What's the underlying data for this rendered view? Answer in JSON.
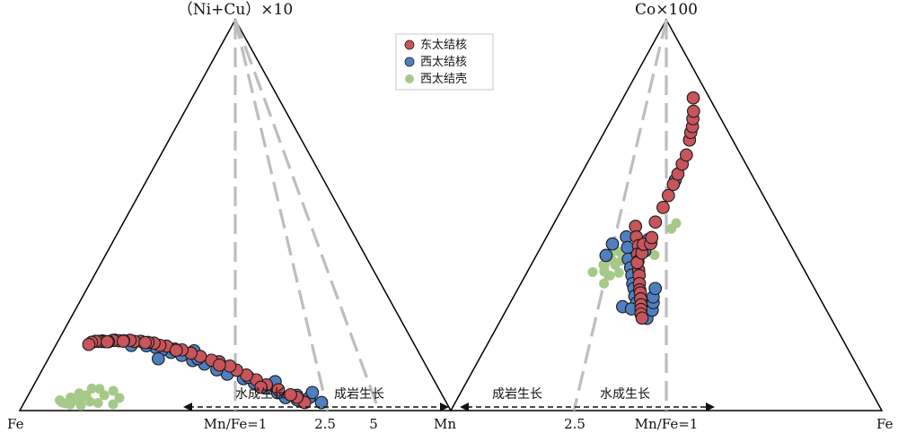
{
  "chart_data": [
    {
      "type": "scatter",
      "plot": "ternary",
      "apex_top": "（Ni+Cu）×10",
      "corner_left": "Fe",
      "corner_right": "Mn",
      "ratio_lines": [
        {
          "label": "Mn/Fe=1",
          "ratio": 1
        },
        {
          "label": "2.5",
          "ratio": 2.5
        },
        {
          "label": "5",
          "ratio": 5
        }
      ],
      "process_arrow": {
        "left_label": "水成生长",
        "right_label": "成岩生长"
      },
      "series": [
        {
          "name": "东太结核",
          "color": "#c8545c",
          "points": [
            [
              0.48,
              0.95,
              0.03
            ],
            [
              0.5,
              0.92,
              0.05
            ],
            [
              0.52,
              0.9,
              0.06
            ],
            [
              0.56,
              0.86,
              0.08
            ],
            [
              0.6,
              0.82,
              0.1
            ],
            [
              0.63,
              0.78,
              0.12
            ],
            [
              0.66,
              0.74,
              0.14
            ],
            [
              0.69,
              0.7,
              0.16
            ],
            [
              0.72,
              0.68,
              0.18
            ],
            [
              0.76,
              0.64,
              0.2
            ],
            [
              0.8,
              0.62,
              0.21
            ],
            [
              0.85,
              0.58,
              0.23
            ],
            [
              0.9,
              0.55,
              0.25
            ],
            [
              0.95,
              0.52,
              0.27
            ],
            [
              1.0,
              0.5,
              0.28
            ],
            [
              1.05,
              0.47,
              0.3
            ],
            [
              1.1,
              0.45,
              0.31
            ],
            [
              1.15,
              0.43,
              0.33
            ],
            [
              1.2,
              0.41,
              0.34
            ],
            [
              1.28,
              0.39,
              0.36
            ],
            [
              1.35,
              0.37,
              0.37
            ],
            [
              1.42,
              0.36,
              0.39
            ],
            [
              1.5,
              0.34,
              0.4
            ],
            [
              1.6,
              0.33,
              0.42
            ],
            [
              1.7,
              0.31,
              0.44
            ],
            [
              1.8,
              0.3,
              0.45
            ],
            [
              1.9,
              0.29,
              0.47
            ],
            [
              2.0,
              0.28,
              0.49
            ],
            [
              2.1,
              0.27,
              0.51
            ],
            [
              2.2,
              0.26,
              0.53
            ],
            [
              2.35,
              0.25,
              0.55
            ],
            [
              2.5,
              0.25,
              0.56
            ],
            [
              0.62,
              0.8,
              0.09
            ],
            [
              0.78,
              0.66,
              0.19
            ],
            [
              0.98,
              0.5,
              0.27
            ],
            [
              1.25,
              0.41,
              0.35
            ],
            [
              1.55,
              0.35,
              0.41
            ],
            [
              1.85,
              0.3,
              0.46
            ]
          ]
        },
        {
          "name": "西太结核",
          "color": "#4f7fc0",
          "points": [
            [
              0.5,
              0.92,
              0.04
            ],
            [
              0.46,
              0.97,
              0.05
            ],
            [
              0.52,
              0.96,
              0.06
            ],
            [
              0.55,
              0.9,
              0.05
            ],
            [
              0.58,
              0.88,
              0.07
            ],
            [
              0.62,
              0.84,
              0.09
            ],
            [
              0.66,
              0.8,
              0.11
            ],
            [
              0.7,
              0.76,
              0.13
            ],
            [
              0.76,
              0.7,
              0.15
            ],
            [
              0.8,
              0.66,
              0.17
            ],
            [
              0.86,
              0.62,
              0.2
            ],
            [
              0.92,
              0.58,
              0.22
            ],
            [
              0.98,
              0.54,
              0.25
            ],
            [
              1.04,
              0.5,
              0.27
            ],
            [
              1.1,
              0.47,
              0.29
            ],
            [
              1.16,
              0.45,
              0.31
            ],
            [
              1.24,
              0.42,
              0.33
            ],
            [
              0.9,
              0.6,
              0.23
            ],
            [
              0.7,
              0.8,
              0.14
            ],
            [
              0.6,
              0.9,
              0.12
            ],
            [
              0.42,
              1.0,
              0.03
            ],
            [
              0.45,
              0.99,
              0.07
            ],
            [
              0.95,
              0.6,
              0.28
            ],
            [
              1.2,
              0.5,
              0.26
            ],
            [
              1.5,
              0.4,
              0.38
            ],
            [
              1.8,
              0.34,
              0.47
            ],
            [
              2.1,
              0.3,
              0.52
            ]
          ]
        },
        {
          "name": "西太结壳",
          "color": "#a6c98a",
          "points": [
            [
              1.4,
              0.4,
              0.06
            ],
            [
              1.6,
              0.36,
              0.08
            ],
            [
              1.8,
              0.33,
              0.05
            ],
            [
              2.0,
              0.3,
              0.07
            ],
            [
              2.2,
              0.28,
              0.06
            ],
            [
              2.4,
              0.26,
              0.05
            ],
            [
              1.5,
              0.38,
              0.1
            ],
            [
              1.7,
              0.34,
              0.12
            ],
            [
              1.9,
              0.31,
              0.09
            ],
            [
              2.1,
              0.29,
              0.11
            ],
            [
              2.3,
              0.27,
              0.09
            ],
            [
              1.65,
              0.35,
              0.04
            ],
            [
              1.95,
              0.31,
              0.03
            ],
            [
              2.25,
              0.28,
              0.04
            ],
            [
              2.55,
              0.25,
              0.06
            ],
            [
              1.45,
              0.39,
              0.03
            ],
            [
              2.7,
              0.24,
              0.08
            ],
            [
              1.85,
              0.32,
              0.13
            ]
          ]
        }
      ]
    },
    {
      "type": "scatter",
      "plot": "ternary",
      "apex_top": "Co×100",
      "corner_left": "Mn",
      "corner_right": "Fe",
      "ratio_lines": [
        {
          "label": "2.5",
          "ratio": 2.5
        },
        {
          "label": "Mn/Fe=1",
          "ratio": 1
        }
      ],
      "process_arrow": {
        "left_label": "成岩生长",
        "right_label": "水成生长"
      },
      "series": [
        {
          "name": "东太结核",
          "color": "#c8545c",
          "points": [
            [
              0.47,
              0.27,
              0.66
            ],
            [
              0.5,
              0.3,
              0.64
            ],
            [
              0.52,
              0.33,
              0.62
            ],
            [
              0.55,
              0.35,
              0.6
            ],
            [
              0.57,
              0.37,
              0.58
            ],
            [
              0.6,
              0.4,
              0.56
            ],
            [
              0.62,
              0.42,
              0.55
            ],
            [
              0.64,
              0.44,
              0.52
            ],
            [
              0.66,
              0.46,
              0.5
            ],
            [
              0.68,
              0.48,
              0.5
            ],
            [
              0.7,
              0.5,
              0.48
            ],
            [
              0.72,
              0.52,
              0.46
            ],
            [
              0.73,
              0.53,
              0.44
            ],
            [
              0.74,
              0.54,
              0.42
            ],
            [
              0.74,
              0.55,
              0.4
            ],
            [
              0.7,
              0.45,
              0.7
            ],
            [
              0.66,
              0.45,
              0.75
            ],
            [
              0.64,
              0.44,
              0.8
            ],
            [
              0.62,
              0.48,
              0.82
            ],
            [
              0.6,
              0.47,
              0.85
            ],
            [
              0.56,
              0.46,
              0.95
            ],
            [
              0.5,
              0.47,
              1.05
            ],
            [
              0.46,
              0.48,
              1.15
            ],
            [
              0.42,
              0.49,
              1.25
            ],
            [
              0.38,
              0.5,
              1.35
            ],
            [
              0.34,
              0.51,
              1.45
            ],
            [
              0.3,
              0.52,
              1.55
            ],
            [
              0.26,
              0.54,
              1.8
            ],
            [
              0.24,
              0.55,
              1.95
            ],
            [
              0.22,
              0.57,
              2.1
            ],
            [
              0.2,
              0.58,
              2.3
            ],
            [
              0.18,
              0.6,
              2.55
            ],
            [
              0.15,
              0.65,
              3.2
            ]
          ]
        },
        {
          "name": "西太结核",
          "color": "#4f7fc0",
          "points": [
            [
              0.5,
              0.25,
              0.6
            ],
            [
              0.53,
              0.28,
              0.58
            ],
            [
              0.56,
              0.31,
              0.55
            ],
            [
              0.58,
              0.34,
              0.53
            ],
            [
              0.61,
              0.37,
              0.52
            ],
            [
              0.64,
              0.4,
              0.5
            ],
            [
              0.67,
              0.43,
              0.5
            ],
            [
              0.7,
              0.46,
              0.48
            ],
            [
              0.72,
              0.49,
              0.46
            ],
            [
              0.74,
              0.52,
              0.44
            ],
            [
              0.75,
              0.56,
              0.43
            ],
            [
              0.76,
              0.6,
              0.42
            ],
            [
              0.74,
              0.62,
              0.47
            ],
            [
              0.71,
              0.6,
              0.5
            ],
            [
              0.69,
              0.58,
              0.52
            ],
            [
              0.65,
              0.56,
              0.55
            ],
            [
              0.56,
              0.22,
              0.58
            ],
            [
              0.6,
              0.22,
              0.54
            ],
            [
              0.74,
              0.42,
              0.42
            ],
            [
              0.78,
              0.5,
              0.45
            ],
            [
              0.66,
              0.47,
              0.78
            ],
            [
              0.62,
              0.46,
              0.84
            ],
            [
              0.4,
              0.49,
              1.28
            ]
          ]
        },
        {
          "name": "西太结壳",
          "color": "#a6c98a",
          "points": [
            [
              0.7,
              0.25,
              0.62
            ],
            [
              0.74,
              0.27,
              0.6
            ],
            [
              0.72,
              0.3,
              0.64
            ],
            [
              0.68,
              0.28,
              0.66
            ],
            [
              0.76,
              0.29,
              0.58
            ],
            [
              0.73,
              0.33,
              0.63
            ],
            [
              0.71,
              0.35,
              0.66
            ],
            [
              0.69,
              0.32,
              0.69
            ],
            [
              0.77,
              0.33,
              0.58
            ],
            [
              0.75,
              0.37,
              0.61
            ],
            [
              0.8,
              0.32,
              0.54
            ],
            [
              0.78,
              0.24,
              0.56
            ],
            [
              0.62,
              0.5,
              0.84
            ],
            [
              0.55,
              0.6,
              1.0
            ],
            [
              0.52,
              0.62,
              1.05
            ],
            [
              0.66,
              0.55,
              0.8
            ]
          ]
        }
      ]
    }
  ],
  "legend": [
    {
      "label": "东太结核",
      "color": "#c8545c"
    },
    {
      "label": "西太结核",
      "color": "#4f7fc0"
    },
    {
      "label": "西太结壳",
      "color": "#a6c98a"
    }
  ]
}
